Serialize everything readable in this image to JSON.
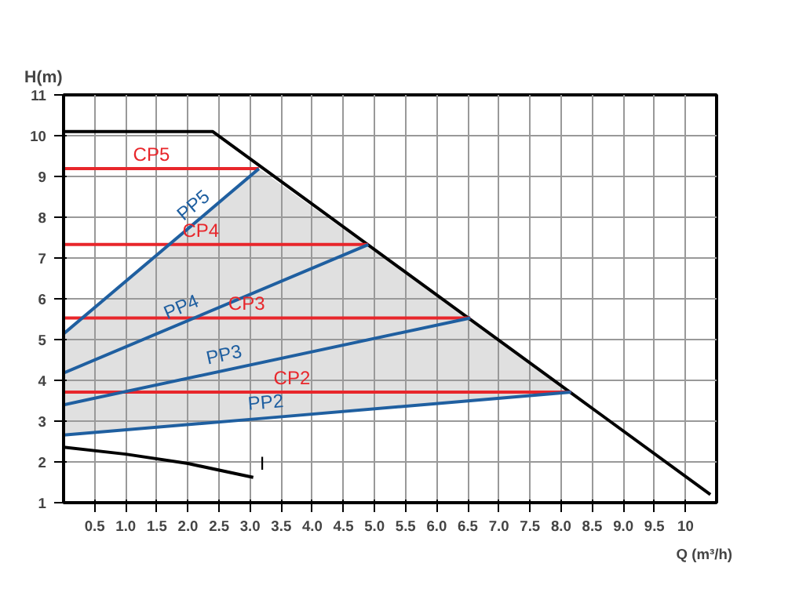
{
  "chart_data": {
    "type": "line",
    "xlabel": "Q (m³/h)",
    "ylabel": "H(m)",
    "xlim": [
      0,
      10.5
    ],
    "ylim": [
      1,
      11
    ],
    "xticks": [
      0.5,
      {
        "value": 1,
        "label": "1.0"
      },
      1.5,
      {
        "value": 2,
        "label": "2.0"
      },
      2.5,
      {
        "value": 3,
        "label": "3.0"
      },
      3.5,
      {
        "value": 4,
        "label": "4.0"
      },
      4.5,
      {
        "value": 5,
        "label": "5.0"
      },
      5.5,
      {
        "value": 6,
        "label": "6.0"
      },
      6.5,
      {
        "value": 7,
        "label": "7.0"
      },
      7.5,
      {
        "value": 8,
        "label": "8.0"
      },
      8.5,
      {
        "value": 9,
        "label": "9.0"
      },
      9.5,
      10
    ],
    "yticks": [
      1,
      2,
      3,
      4,
      5,
      6,
      7,
      8,
      9,
      10,
      11
    ],
    "grid": true,
    "series": [
      {
        "color": "#000000",
        "x": [
          0,
          2.4,
          10.4
        ],
        "values": [
          10.1,
          10.1,
          1.2
        ]
      },
      {
        "name": "I",
        "color": "#000000",
        "x": [
          0,
          1,
          2,
          3.05
        ],
        "values": [
          2.36,
          2.19,
          1.96,
          1.62
        ]
      },
      {
        "name": "CP5",
        "color": "#e8262b",
        "x": [
          0,
          3.14
        ],
        "values": [
          9.19,
          9.19
        ]
      },
      {
        "name": "CP4",
        "color": "#e8262b",
        "x": [
          0,
          4.9
        ],
        "values": [
          7.33,
          7.33
        ]
      },
      {
        "name": "CP3",
        "color": "#e8262b",
        "x": [
          0,
          6.54
        ],
        "values": [
          5.53,
          5.53
        ]
      },
      {
        "name": "CP2",
        "color": "#e8262b",
        "x": [
          0,
          8.16
        ],
        "values": [
          3.71,
          3.71
        ]
      },
      {
        "name": "PP5",
        "color": "#1f5fa0",
        "x": [
          0,
          3.14
        ],
        "values": [
          5.14,
          9.19
        ]
      },
      {
        "name": "PP4",
        "color": "#1f5fa0",
        "x": [
          0,
          4.9
        ],
        "values": [
          4.18,
          7.33
        ]
      },
      {
        "name": "PP3",
        "color": "#1f5fa0",
        "x": [
          0,
          6.54
        ],
        "values": [
          3.4,
          5.53
        ]
      },
      {
        "name": "PP2",
        "color": "#1f5fa0",
        "x": [
          0,
          3.14,
          8.16
        ],
        "values": [
          2.66,
          3.06,
          3.71
        ],
        "lower": [
          2.66,
          3.06,
          3.71
        ],
        "upper": [
          5.14,
          9.19,
          3.71
        ]
      }
    ]
  }
}
